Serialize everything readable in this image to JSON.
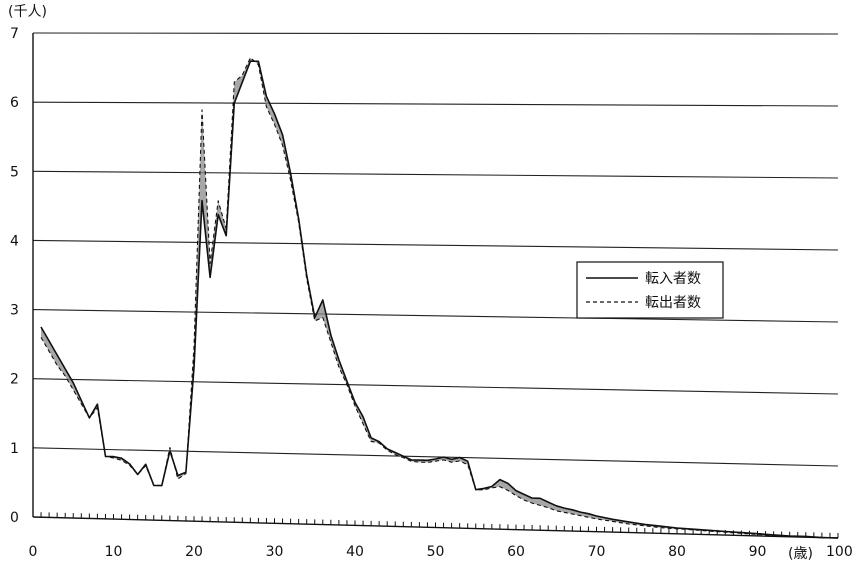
{
  "chart_data": {
    "type": "line",
    "ylabel": "(千人)",
    "xlabel": "(歳)",
    "xlim": [
      0,
      100
    ],
    "ylim": [
      0,
      7
    ],
    "x_ticks": [
      0,
      10,
      20,
      30,
      40,
      50,
      60,
      70,
      80,
      90,
      100
    ],
    "y_ticks": [
      0,
      1,
      2,
      3,
      4,
      5,
      6,
      7
    ],
    "grid": true,
    "legend_position": "center-right",
    "series": [
      {
        "name": "転入者数",
        "style": "solid",
        "color": "#111111",
        "points": [
          [
            1,
            2.75
          ],
          [
            2,
            2.55
          ],
          [
            3,
            2.35
          ],
          [
            4,
            2.15
          ],
          [
            5,
            1.95
          ],
          [
            6,
            1.7
          ],
          [
            7,
            1.45
          ],
          [
            8,
            1.65
          ],
          [
            9,
            0.9
          ],
          [
            10,
            0.9
          ],
          [
            11,
            0.88
          ],
          [
            12,
            0.8
          ],
          [
            13,
            0.65
          ],
          [
            14,
            0.8
          ],
          [
            15,
            0.5
          ],
          [
            16,
            0.5
          ],
          [
            17,
            1.0
          ],
          [
            18,
            0.65
          ],
          [
            19,
            0.7
          ],
          [
            20,
            2.2
          ],
          [
            21,
            4.6
          ],
          [
            22,
            3.5
          ],
          [
            23,
            4.4
          ],
          [
            24,
            4.1
          ],
          [
            25,
            6.0
          ],
          [
            26,
            6.3
          ],
          [
            27,
            6.6
          ],
          [
            28,
            6.6
          ],
          [
            29,
            6.1
          ],
          [
            30,
            5.85
          ],
          [
            31,
            5.55
          ],
          [
            32,
            5.0
          ],
          [
            33,
            4.35
          ],
          [
            34,
            3.55
          ],
          [
            35,
            2.95
          ],
          [
            36,
            3.2
          ],
          [
            37,
            2.7
          ],
          [
            38,
            2.35
          ],
          [
            39,
            2.05
          ],
          [
            40,
            1.75
          ],
          [
            41,
            1.55
          ],
          [
            42,
            1.25
          ],
          [
            43,
            1.2
          ],
          [
            44,
            1.1
          ],
          [
            45,
            1.05
          ],
          [
            46,
            1.0
          ],
          [
            47,
            0.95
          ],
          [
            48,
            0.95
          ],
          [
            49,
            0.95
          ],
          [
            50,
            0.97
          ],
          [
            51,
            1.0
          ],
          [
            52,
            0.97
          ],
          [
            53,
            1.0
          ],
          [
            54,
            0.95
          ],
          [
            55,
            0.55
          ],
          [
            56,
            0.57
          ],
          [
            57,
            0.6
          ],
          [
            58,
            0.7
          ],
          [
            59,
            0.65
          ],
          [
            60,
            0.55
          ],
          [
            61,
            0.5
          ],
          [
            62,
            0.45
          ],
          [
            63,
            0.45
          ],
          [
            64,
            0.4
          ],
          [
            65,
            0.35
          ],
          [
            66,
            0.32
          ],
          [
            67,
            0.3
          ],
          [
            68,
            0.27
          ],
          [
            69,
            0.25
          ],
          [
            70,
            0.22
          ],
          [
            72,
            0.18
          ],
          [
            74,
            0.15
          ],
          [
            76,
            0.12
          ],
          [
            78,
            0.1
          ],
          [
            80,
            0.08
          ],
          [
            82,
            0.07
          ],
          [
            84,
            0.06
          ],
          [
            86,
            0.05
          ],
          [
            88,
            0.04
          ],
          [
            90,
            0.03
          ],
          [
            92,
            0.02
          ],
          [
            94,
            0.01
          ],
          [
            96,
            0.01
          ],
          [
            98,
            0.0
          ],
          [
            100,
            0.0
          ]
        ]
      },
      {
        "name": "転出者数",
        "style": "dashed",
        "color": "#111111",
        "points": [
          [
            1,
            2.6
          ],
          [
            2,
            2.4
          ],
          [
            3,
            2.2
          ],
          [
            4,
            2.05
          ],
          [
            5,
            1.85
          ],
          [
            6,
            1.65
          ],
          [
            7,
            1.45
          ],
          [
            8,
            1.6
          ],
          [
            9,
            0.9
          ],
          [
            10,
            0.88
          ],
          [
            11,
            0.85
          ],
          [
            12,
            0.78
          ],
          [
            13,
            0.65
          ],
          [
            14,
            0.78
          ],
          [
            15,
            0.5
          ],
          [
            16,
            0.5
          ],
          [
            17,
            1.05
          ],
          [
            18,
            0.6
          ],
          [
            19,
            0.68
          ],
          [
            20,
            2.5
          ],
          [
            21,
            5.9
          ],
          [
            22,
            3.7
          ],
          [
            23,
            4.6
          ],
          [
            24,
            4.2
          ],
          [
            25,
            6.3
          ],
          [
            26,
            6.4
          ],
          [
            27,
            6.65
          ],
          [
            28,
            6.55
          ],
          [
            29,
            5.95
          ],
          [
            30,
            5.7
          ],
          [
            31,
            5.4
          ],
          [
            32,
            4.9
          ],
          [
            33,
            4.3
          ],
          [
            34,
            3.5
          ],
          [
            35,
            2.9
          ],
          [
            36,
            2.95
          ],
          [
            37,
            2.6
          ],
          [
            38,
            2.25
          ],
          [
            39,
            2.0
          ],
          [
            40,
            1.7
          ],
          [
            41,
            1.45
          ],
          [
            42,
            1.2
          ],
          [
            43,
            1.18
          ],
          [
            44,
            1.08
          ],
          [
            45,
            1.02
          ],
          [
            46,
            0.98
          ],
          [
            47,
            0.93
          ],
          [
            48,
            0.92
          ],
          [
            49,
            0.92
          ],
          [
            50,
            0.94
          ],
          [
            51,
            0.96
          ],
          [
            52,
            0.93
          ],
          [
            53,
            0.95
          ],
          [
            54,
            0.9
          ],
          [
            55,
            0.55
          ],
          [
            56,
            0.55
          ],
          [
            57,
            0.58
          ],
          [
            58,
            0.6
          ],
          [
            59,
            0.55
          ],
          [
            60,
            0.48
          ],
          [
            61,
            0.42
          ],
          [
            62,
            0.38
          ],
          [
            63,
            0.35
          ],
          [
            64,
            0.32
          ],
          [
            65,
            0.28
          ],
          [
            66,
            0.26
          ],
          [
            67,
            0.24
          ],
          [
            68,
            0.22
          ],
          [
            69,
            0.2
          ],
          [
            70,
            0.18
          ],
          [
            72,
            0.15
          ],
          [
            74,
            0.12
          ],
          [
            76,
            0.1
          ],
          [
            78,
            0.08
          ],
          [
            80,
            0.07
          ],
          [
            82,
            0.06
          ],
          [
            84,
            0.05
          ],
          [
            86,
            0.04
          ],
          [
            88,
            0.03
          ],
          [
            90,
            0.02
          ],
          [
            92,
            0.015
          ],
          [
            94,
            0.01
          ],
          [
            96,
            0.005
          ],
          [
            98,
            0.0
          ],
          [
            100,
            0.0
          ]
        ]
      }
    ],
    "fill_between": {
      "color": "#8a8a8a"
    }
  }
}
